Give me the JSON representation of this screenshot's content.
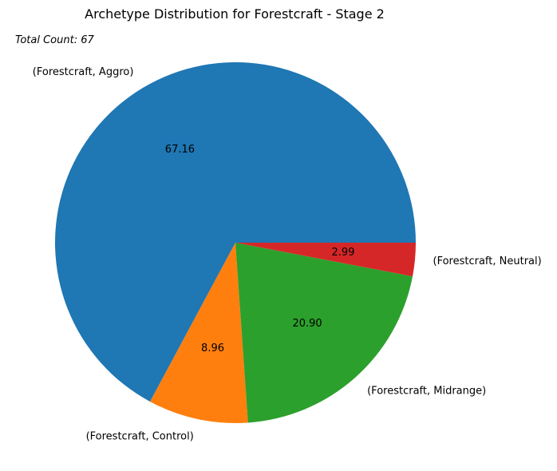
{
  "chart_data": {
    "type": "pie",
    "title": "Archetype Distribution for Forestcraft - Stage 2",
    "annotation": "Total Count: 67",
    "start_angle_deg": 0,
    "direction": "counterclockwise",
    "legend": "none",
    "slices": [
      {
        "label": "(Forestcraft, Aggro)",
        "value": 67.16,
        "display": "67.16",
        "color": "#1f77b4"
      },
      {
        "label": "(Forestcraft, Control)",
        "value": 8.96,
        "display": "8.96",
        "color": "#ff7f0e"
      },
      {
        "label": "(Forestcraft, Midrange)",
        "value": 20.9,
        "display": "20.90",
        "color": "#2ca02c"
      },
      {
        "label": "(Forestcraft, Neutral)",
        "value": 2.99,
        "display": "2.99",
        "color": "#d62728"
      }
    ]
  }
}
